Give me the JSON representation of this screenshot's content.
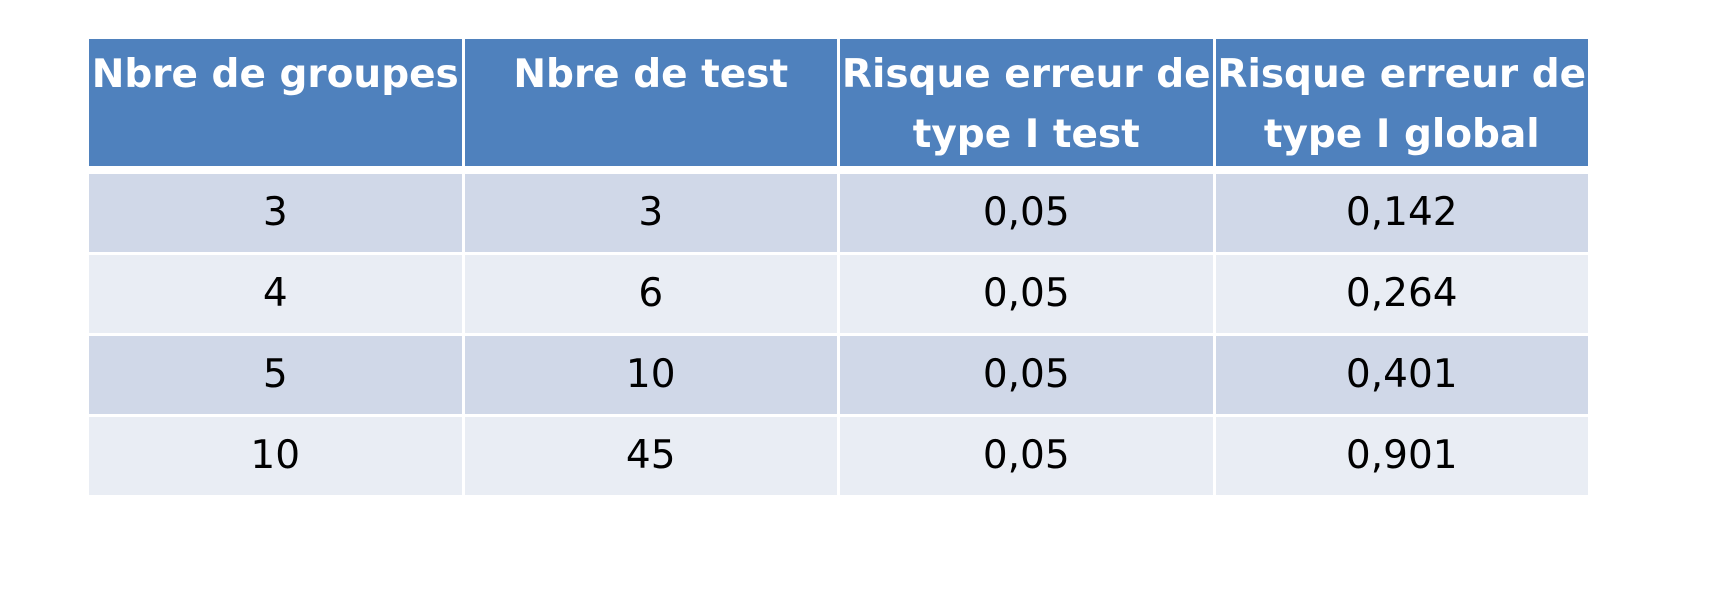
{
  "table": {
    "headers": [
      "Nbre de groupes",
      "Nbre de test",
      "Risque erreur de type I test",
      "Risque erreur de type I global"
    ],
    "rows": [
      [
        "3",
        "3",
        "0,05",
        "0,142"
      ],
      [
        "4",
        "6",
        "0,05",
        "0,264"
      ],
      [
        "5",
        "10",
        "0,05",
        "0,401"
      ],
      [
        "10",
        "45",
        "0,05",
        "0,901"
      ]
    ]
  },
  "colors": {
    "header_bg": "#4f81bd",
    "row_odd_bg": "#d0d8e8",
    "row_even_bg": "#e9edf4"
  }
}
